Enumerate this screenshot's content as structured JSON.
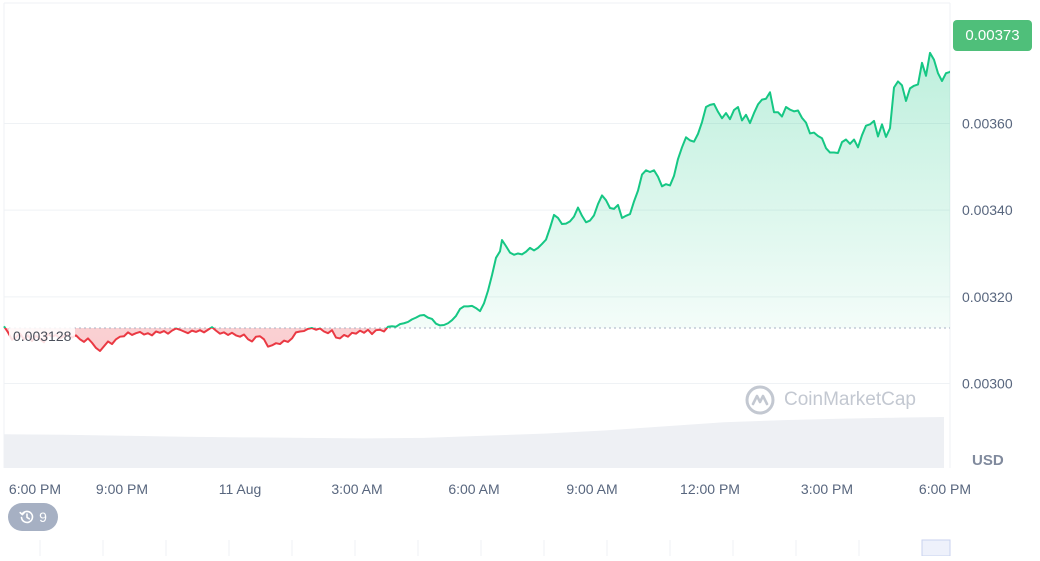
{
  "chart_data": {
    "type": "area",
    "price_axis": {
      "ticks": [
        "0.00300",
        "0.00320",
        "0.00340",
        "0.00360"
      ],
      "tick_values": [
        0.003,
        0.0032,
        0.0034,
        0.0036
      ],
      "range": [
        0.002805,
        0.003878
      ],
      "currency": "USD"
    },
    "time_axis": {
      "ticks": [
        "6:00 PM",
        "9:00 PM",
        "11 Aug",
        "3:00 AM",
        "6:00 AM",
        "9:00 AM",
        "12:00 PM",
        "3:00 PM",
        "6:00 PM"
      ]
    },
    "reference_price": {
      "value": 0.003128,
      "label": "0.003128"
    },
    "current_price": {
      "value": 0.00373,
      "label": "0.00373"
    },
    "price_series": {
      "name": "Price",
      "points": [
        [
          0,
          0.003132
        ],
        [
          4,
          0.003118
        ],
        [
          8,
          0.003101
        ],
        [
          12,
          0.003106
        ],
        [
          16,
          0.003115
        ],
        [
          20,
          0.003102
        ],
        [
          24,
          0.003111
        ],
        [
          28,
          0.003098
        ],
        [
          32,
          0.00311
        ],
        [
          36,
          0.003103
        ],
        [
          40,
          0.003095
        ],
        [
          44,
          0.003114
        ],
        [
          48,
          0.003108
        ],
        [
          52,
          0.003112
        ],
        [
          56,
          0.003104
        ],
        [
          60,
          0.003109
        ],
        [
          64,
          0.003113
        ],
        [
          68,
          0.003106
        ],
        [
          72,
          0.003111
        ],
        [
          76,
          0.003102
        ],
        [
          80,
          0.003096
        ],
        [
          84,
          0.003104
        ],
        [
          88,
          0.003094
        ],
        [
          92,
          0.003082
        ],
        [
          96,
          0.003075
        ],
        [
          100,
          0.003086
        ],
        [
          104,
          0.003097
        ],
        [
          108,
          0.003091
        ],
        [
          112,
          0.003102
        ],
        [
          116,
          0.003108
        ],
        [
          120,
          0.003109
        ],
        [
          124,
          0.003118
        ],
        [
          128,
          0.003112
        ],
        [
          132,
          0.003116
        ],
        [
          136,
          0.003119
        ],
        [
          140,
          0.003113
        ],
        [
          144,
          0.003116
        ],
        [
          148,
          0.003111
        ],
        [
          152,
          0.00312
        ],
        [
          156,
          0.003117
        ],
        [
          160,
          0.003121
        ],
        [
          164,
          0.003115
        ],
        [
          168,
          0.003122
        ],
        [
          172,
          0.003127
        ],
        [
          176,
          0.003124
        ],
        [
          180,
          0.00312
        ],
        [
          184,
          0.003116
        ],
        [
          188,
          0.003122
        ],
        [
          192,
          0.003119
        ],
        [
          196,
          0.003123
        ],
        [
          200,
          0.003118
        ],
        [
          204,
          0.003124
        ],
        [
          208,
          0.00313
        ],
        [
          212,
          0.003122
        ],
        [
          216,
          0.003115
        ],
        [
          220,
          0.003118
        ],
        [
          224,
          0.003112
        ],
        [
          228,
          0.003117
        ],
        [
          232,
          0.003111
        ],
        [
          236,
          0.003108
        ],
        [
          240,
          0.003113
        ],
        [
          244,
          0.003102
        ],
        [
          248,
          0.003097
        ],
        [
          252,
          0.003108
        ],
        [
          256,
          0.003109
        ],
        [
          260,
          0.003102
        ],
        [
          264,
          0.003085
        ],
        [
          268,
          0.003088
        ],
        [
          272,
          0.003093
        ],
        [
          276,
          0.003091
        ],
        [
          280,
          0.003099
        ],
        [
          284,
          0.003096
        ],
        [
          288,
          0.003104
        ],
        [
          292,
          0.003118
        ],
        [
          296,
          0.00312
        ],
        [
          300,
          0.003121
        ],
        [
          304,
          0.003126
        ],
        [
          308,
          0.003128
        ],
        [
          312,
          0.003124
        ],
        [
          316,
          0.003127
        ],
        [
          320,
          0.00312
        ],
        [
          324,
          0.003116
        ],
        [
          328,
          0.003123
        ],
        [
          332,
          0.003106
        ],
        [
          336,
          0.003104
        ],
        [
          340,
          0.003112
        ],
        [
          344,
          0.003108
        ],
        [
          348,
          0.003117
        ],
        [
          352,
          0.003115
        ],
        [
          356,
          0.003122
        ],
        [
          360,
          0.003117
        ],
        [
          364,
          0.003124
        ],
        [
          368,
          0.003114
        ],
        [
          372,
          0.003123
        ],
        [
          376,
          0.003124
        ],
        [
          380,
          0.00312
        ],
        [
          384,
          0.003131
        ],
        [
          388,
          0.003132
        ],
        [
          392,
          0.003131
        ],
        [
          396,
          0.003137
        ],
        [
          400,
          0.003139
        ],
        [
          404,
          0.003142
        ],
        [
          408,
          0.003148
        ],
        [
          412,
          0.003152
        ],
        [
          416,
          0.003157
        ],
        [
          420,
          0.003158
        ],
        [
          424,
          0.003152
        ],
        [
          428,
          0.003149
        ],
        [
          432,
          0.003138
        ],
        [
          436,
          0.003134
        ],
        [
          440,
          0.003135
        ],
        [
          444,
          0.003139
        ],
        [
          448,
          0.003146
        ],
        [
          452,
          0.003156
        ],
        [
          456,
          0.003172
        ],
        [
          460,
          0.003178
        ],
        [
          464,
          0.003178
        ],
        [
          468,
          0.003179
        ],
        [
          472,
          0.003174
        ],
        [
          476,
          0.003167
        ],
        [
          480,
          0.003185
        ],
        [
          484,
          0.003214
        ],
        [
          488,
          0.00325
        ],
        [
          492,
          0.00329
        ],
        [
          496,
          0.003305
        ],
        [
          498,
          0.003331
        ],
        [
          502,
          0.003317
        ],
        [
          506,
          0.003302
        ],
        [
          510,
          0.003297
        ],
        [
          514,
          0.0033
        ],
        [
          518,
          0.003298
        ],
        [
          522,
          0.003304
        ],
        [
          526,
          0.003313
        ],
        [
          530,
          0.003307
        ],
        [
          534,
          0.003313
        ],
        [
          538,
          0.003322
        ],
        [
          542,
          0.003332
        ],
        [
          546,
          0.003359
        ],
        [
          550,
          0.003389
        ],
        [
          554,
          0.003382
        ],
        [
          558,
          0.003368
        ],
        [
          562,
          0.003369
        ],
        [
          566,
          0.003374
        ],
        [
          570,
          0.003385
        ],
        [
          574,
          0.003406
        ],
        [
          578,
          0.003387
        ],
        [
          582,
          0.003372
        ],
        [
          586,
          0.003376
        ],
        [
          590,
          0.003388
        ],
        [
          594,
          0.003414
        ],
        [
          598,
          0.003434
        ],
        [
          602,
          0.003423
        ],
        [
          606,
          0.003405
        ],
        [
          610,
          0.003403
        ],
        [
          614,
          0.003412
        ],
        [
          618,
          0.003382
        ],
        [
          622,
          0.003387
        ],
        [
          626,
          0.003391
        ],
        [
          630,
          0.00342
        ],
        [
          634,
          0.003445
        ],
        [
          638,
          0.003482
        ],
        [
          642,
          0.003492
        ],
        [
          646,
          0.003488
        ],
        [
          650,
          0.003492
        ],
        [
          654,
          0.003477
        ],
        [
          658,
          0.003455
        ],
        [
          662,
          0.00346
        ],
        [
          666,
          0.003457
        ],
        [
          670,
          0.003479
        ],
        [
          674,
          0.003518
        ],
        [
          678,
          0.003545
        ],
        [
          682,
          0.003568
        ],
        [
          686,
          0.003561
        ],
        [
          690,
          0.003558
        ],
        [
          694,
          0.003576
        ],
        [
          698,
          0.003603
        ],
        [
          702,
          0.003638
        ],
        [
          706,
          0.003643
        ],
        [
          710,
          0.003645
        ],
        [
          714,
          0.003627
        ],
        [
          718,
          0.003612
        ],
        [
          722,
          0.003624
        ],
        [
          726,
          0.00361
        ],
        [
          730,
          0.003631
        ],
        [
          734,
          0.003638
        ],
        [
          738,
          0.003607
        ],
        [
          742,
          0.00362
        ],
        [
          746,
          0.003601
        ],
        [
          750,
          0.003624
        ],
        [
          754,
          0.003644
        ],
        [
          758,
          0.003655
        ],
        [
          762,
          0.003657
        ],
        [
          766,
          0.003672
        ],
        [
          770,
          0.003626
        ],
        [
          774,
          0.003626
        ],
        [
          778,
          0.003616
        ],
        [
          782,
          0.003638
        ],
        [
          786,
          0.003632
        ],
        [
          790,
          0.003628
        ],
        [
          794,
          0.00363
        ],
        [
          798,
          0.003613
        ],
        [
          802,
          0.003602
        ],
        [
          806,
          0.003577
        ],
        [
          810,
          0.003579
        ],
        [
          814,
          0.003571
        ],
        [
          818,
          0.003566
        ],
        [
          822,
          0.003543
        ],
        [
          826,
          0.003533
        ],
        [
          830,
          0.003533
        ],
        [
          834,
          0.003532
        ],
        [
          838,
          0.003557
        ],
        [
          842,
          0.003563
        ],
        [
          846,
          0.003553
        ],
        [
          850,
          0.003563
        ],
        [
          854,
          0.003545
        ],
        [
          858,
          0.003573
        ],
        [
          862,
          0.003595
        ],
        [
          866,
          0.003598
        ],
        [
          870,
          0.003606
        ],
        [
          874,
          0.00357
        ],
        [
          878,
          0.003598
        ],
        [
          882,
          0.003569
        ],
        [
          886,
          0.003589
        ],
        [
          890,
          0.003683
        ],
        [
          894,
          0.003697
        ],
        [
          898,
          0.003688
        ],
        [
          902,
          0.003652
        ],
        [
          906,
          0.003681
        ],
        [
          910,
          0.003687
        ],
        [
          914,
          0.00369
        ],
        [
          918,
          0.00374
        ],
        [
          922,
          0.00371
        ],
        [
          926,
          0.003763
        ],
        [
          930,
          0.003747
        ],
        [
          934,
          0.003716
        ],
        [
          938,
          0.003698
        ],
        [
          942,
          0.003716
        ],
        [
          946,
          0.003719
        ],
        [
          950,
          0.00373
        ]
      ]
    },
    "volume_series": {
      "name": "Volume",
      "points": [
        [
          0,
          0.65
        ],
        [
          60,
          0.64
        ],
        [
          120,
          0.62
        ],
        [
          180,
          0.6
        ],
        [
          240,
          0.59
        ],
        [
          300,
          0.58
        ],
        [
          360,
          0.57
        ],
        [
          420,
          0.58
        ],
        [
          480,
          0.62
        ],
        [
          540,
          0.66
        ],
        [
          600,
          0.72
        ],
        [
          660,
          0.8
        ],
        [
          720,
          0.88
        ],
        [
          780,
          0.92
        ],
        [
          840,
          0.95
        ],
        [
          900,
          0.97
        ],
        [
          940,
          0.98
        ]
      ]
    },
    "grid": true,
    "watermark": "CoinMarketCap",
    "history_badge": "9"
  }
}
